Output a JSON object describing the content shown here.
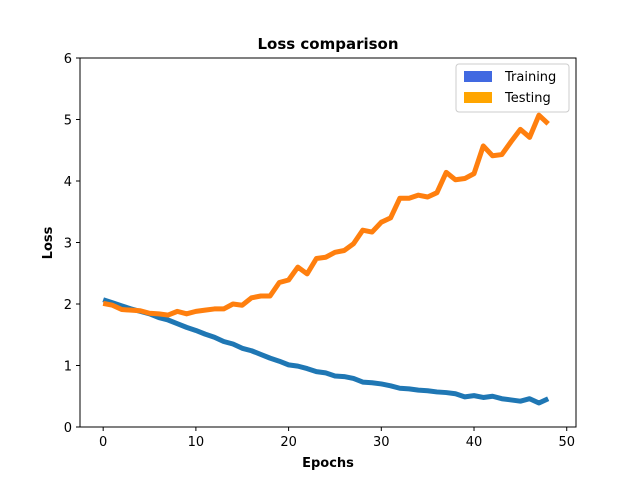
{
  "chart_data": {
    "type": "line",
    "title": "Loss comparison",
    "xlabel": "Epochs",
    "ylabel": "Loss",
    "xlim": [
      -2.5,
      51
    ],
    "ylim": [
      0,
      6
    ],
    "xticks": [
      0,
      10,
      20,
      30,
      40,
      50
    ],
    "yticks": [
      0,
      1,
      2,
      3,
      4,
      5,
      6
    ],
    "grid": false,
    "legend_position": "top-right",
    "x": [
      0,
      1,
      2,
      3,
      4,
      5,
      6,
      7,
      8,
      9,
      10,
      11,
      12,
      13,
      14,
      15,
      16,
      17,
      18,
      19,
      20,
      21,
      22,
      23,
      24,
      25,
      26,
      27,
      28,
      29,
      30,
      31,
      32,
      33,
      34,
      35,
      36,
      37,
      38,
      39,
      40,
      41,
      42,
      43,
      44,
      45,
      46,
      47,
      48
    ],
    "series": [
      {
        "name": "Training",
        "legend_color": "#4169e1",
        "color": "#1f77b4",
        "values": [
          2.07,
          2.02,
          1.97,
          1.92,
          1.88,
          1.84,
          1.78,
          1.74,
          1.68,
          1.62,
          1.57,
          1.51,
          1.46,
          1.39,
          1.35,
          1.28,
          1.24,
          1.18,
          1.12,
          1.07,
          1.01,
          0.99,
          0.95,
          0.9,
          0.88,
          0.83,
          0.82,
          0.79,
          0.73,
          0.72,
          0.7,
          0.67,
          0.63,
          0.62,
          0.6,
          0.59,
          0.57,
          0.56,
          0.54,
          0.49,
          0.51,
          0.48,
          0.5,
          0.46,
          0.44,
          0.42,
          0.46,
          0.39,
          0.46
        ]
      },
      {
        "name": "Testing",
        "legend_color": "#ffa500",
        "color": "#ff7f0e",
        "values": [
          2.01,
          1.98,
          1.91,
          1.9,
          1.89,
          1.85,
          1.84,
          1.82,
          1.88,
          1.84,
          1.88,
          1.9,
          1.92,
          1.92,
          2.0,
          1.98,
          2.1,
          2.13,
          2.13,
          2.35,
          2.39,
          2.6,
          2.49,
          2.74,
          2.76,
          2.84,
          2.87,
          2.98,
          3.2,
          3.17,
          3.33,
          3.4,
          3.72,
          3.72,
          3.77,
          3.74,
          3.81,
          4.14,
          4.02,
          4.04,
          4.12,
          4.57,
          4.41,
          4.43,
          4.64,
          4.84,
          4.71,
          5.07,
          4.93
        ]
      }
    ]
  }
}
